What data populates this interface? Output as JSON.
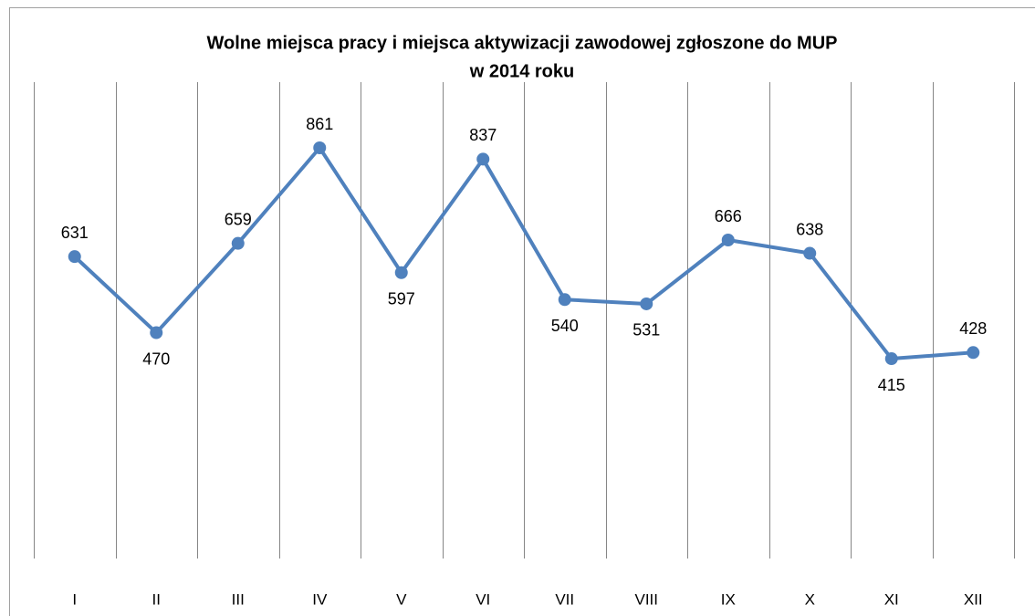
{
  "chart_data": {
    "type": "line",
    "title": [
      "Wolne miejsca pracy i miejsca aktywizacji zawodowej zgłoszone do MUP",
      "w 2014 roku"
    ],
    "categories": [
      "I",
      "II",
      "III",
      "IV",
      "V",
      "VI",
      "VII",
      "VIII",
      "IX",
      "X",
      "XI",
      "XII"
    ],
    "series": [
      {
        "color": "#4f81bd",
        "values": [
          631,
          470,
          659,
          861,
          597,
          837,
          540,
          531,
          666,
          638,
          415,
          428
        ]
      }
    ],
    "ylim": [
      0,
      1000
    ]
  }
}
